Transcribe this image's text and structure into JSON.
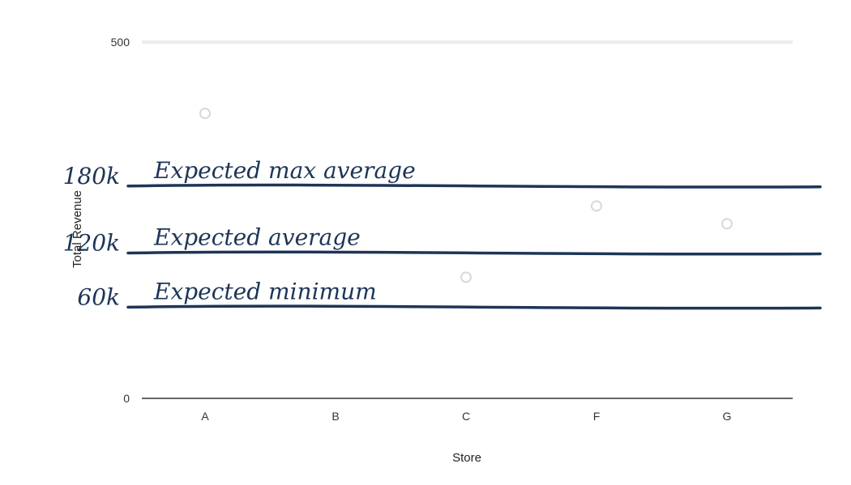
{
  "chart_data": {
    "type": "scatter",
    "xlabel": "Store",
    "ylabel": "Total Revenue",
    "categories": [
      "A",
      "B",
      "C",
      "F",
      "G"
    ],
    "y_ticks": [
      "500",
      "0"
    ],
    "ylim": [
      0,
      500
    ],
    "grid": true,
    "series": [
      {
        "values": [
          400,
          null,
          170,
          270,
          245
        ]
      }
    ],
    "annotations": [
      {
        "y_label": "180k",
        "text": "Expected max average",
        "data_value": 298
      },
      {
        "y_label": "120k",
        "text": "Expected average",
        "data_value": 204
      },
      {
        "y_label": "60k",
        "text": "Expected minimum",
        "data_value": 128
      }
    ]
  },
  "colors": {
    "ink": "#1d3557",
    "axis": "#666666",
    "grid": "#ececec",
    "points": "#d8d8d8"
  }
}
